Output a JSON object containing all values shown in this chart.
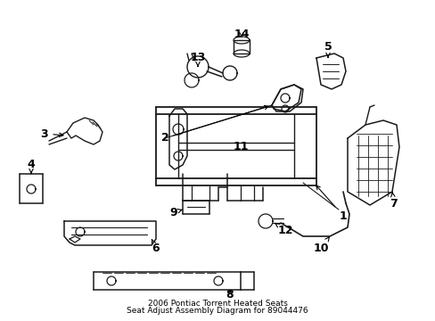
{
  "title_line1": "2006 Pontiac Torrent Heated Seats",
  "title_line2": "Seat Adjust Assembly Diagram for 89044476",
  "bg_color": "#ffffff",
  "line_color": "#1a1a1a",
  "figsize": [
    4.89,
    3.6
  ],
  "dpi": 100
}
